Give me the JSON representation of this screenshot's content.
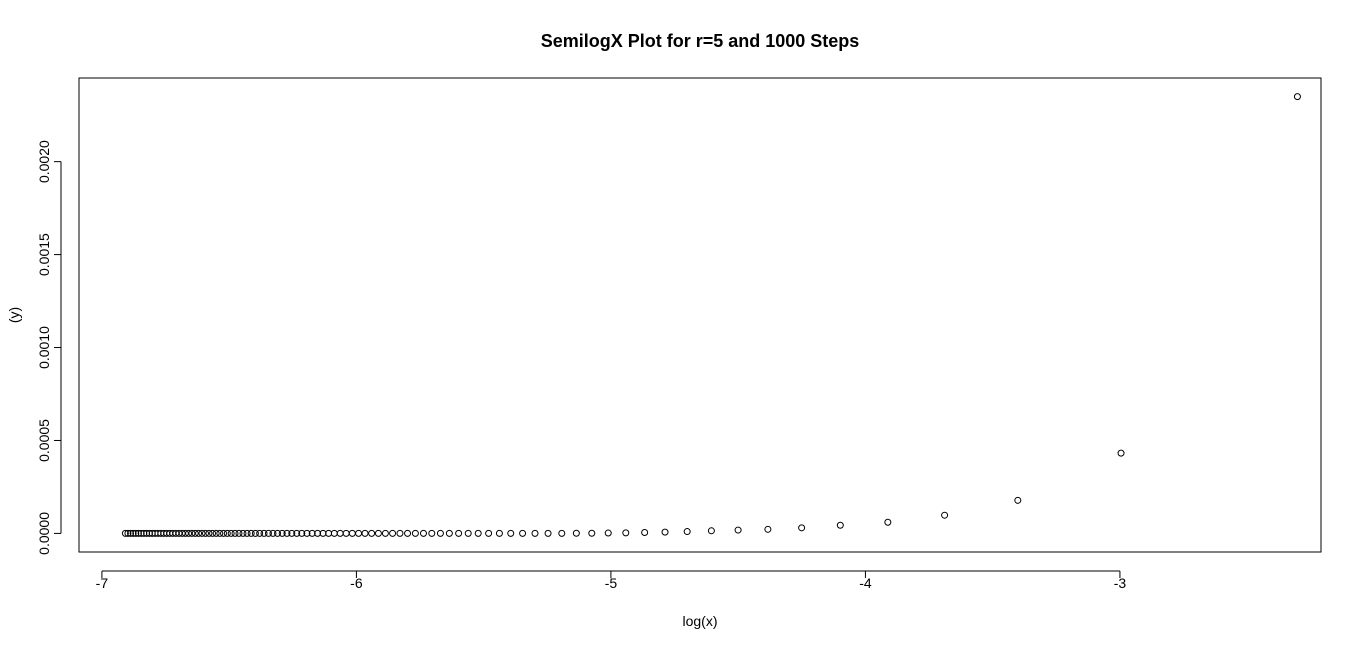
{
  "chart_data": {
    "type": "scatter",
    "title": "SemilogX Plot for r=5 and 1000 Steps",
    "xlabel": "log(x)",
    "ylabel": "(y)",
    "xlim": [
      -7.09,
      -2.21
    ],
    "ylim": [
      -0.0001,
      0.00245
    ],
    "x_ticks": [
      -7,
      -6,
      -5,
      -4,
      -3
    ],
    "x_tick_labels": [
      "-7",
      "-6",
      "-5",
      "-4",
      "-3"
    ],
    "y_ticks": [
      0,
      0.0005,
      0.001,
      0.0015,
      0.002
    ],
    "y_tick_labels": [
      "0.0000",
      "0.0005",
      "0.0010",
      "0.0015",
      "0.0020"
    ],
    "grid": false,
    "legend": "none",
    "marker": "open-circle",
    "point_color": "#000000",
    "x": [
      -6.9078,
      -6.8977,
      -6.8876,
      -6.8773,
      -6.8669,
      -6.8565,
      -6.8459,
      -6.8352,
      -6.8244,
      -6.8134,
      -6.8024,
      -6.7912,
      -6.7799,
      -6.7685,
      -6.7569,
      -6.7452,
      -6.7334,
      -6.7214,
      -6.7093,
      -6.697,
      -6.6846,
      -6.672,
      -6.6593,
      -6.6464,
      -6.6333,
      -6.6201,
      -6.6067,
      -6.593,
      -6.5793,
      -6.5653,
      -6.5511,
      -6.5367,
      -6.5221,
      -6.5073,
      -6.4922,
      -6.477,
      -6.4615,
      -6.4457,
      -6.4297,
      -6.4135,
      -6.3969,
      -6.3801,
      -6.363,
      -6.3456,
      -6.3279,
      -6.3099,
      -6.2916,
      -6.2729,
      -6.2538,
      -6.2344,
      -6.2146,
      -6.1944,
      -6.1738,
      -6.1527,
      -6.1312,
      -6.1092,
      -6.0868,
      -6.0638,
      -6.0403,
      -6.0162,
      -5.9915,
      -5.9662,
      -5.9402,
      -5.9135,
      -5.8861,
      -5.8579,
      -5.8289,
      -5.7991,
      -5.7683,
      -5.7365,
      -5.7038,
      -5.6699,
      -5.6348,
      -5.5984,
      -5.5607,
      -5.5215,
      -5.4806,
      -5.4381,
      -5.3936,
      -5.3471,
      -5.2983,
      -5.247,
      -5.193,
      -5.1358,
      -5.0752,
      -5.0106,
      -4.9416,
      -4.8675,
      -4.7874,
      -4.7004,
      -4.6052,
      -4.5003,
      -4.3833,
      -4.2507,
      -4.0987,
      -3.912,
      -3.6889,
      -3.4012,
      -2.9957,
      -2.3026
    ],
    "y": [
      0,
      0,
      0,
      0,
      0,
      0,
      0,
      0,
      0,
      0,
      0,
      0,
      0,
      0,
      0,
      0,
      0,
      0,
      0,
      0,
      0,
      0,
      0,
      0,
      0,
      0,
      0,
      0,
      0,
      0,
      0,
      0,
      0,
      0,
      0,
      0,
      0,
      0,
      0,
      0,
      0,
      0,
      0,
      0,
      0,
      0,
      0,
      0,
      0,
      0,
      0,
      0,
      0,
      0,
      0,
      0,
      0,
      0,
      0,
      0,
      0,
      0,
      0,
      0,
      0,
      0,
      0,
      0,
      0,
      0,
      0,
      0,
      0,
      0,
      0,
      0,
      0,
      0,
      0,
      0,
      0,
      0,
      0,
      1e-06,
      1e-06,
      2e-06,
      3e-06,
      5e-06,
      7e-06,
      1e-05,
      1.4e-05,
      1.8e-05,
      2.2e-05,
      3e-05,
      4.4e-05,
      6e-05,
      9.8e-05,
      0.000178,
      0.000432,
      0.00235
    ]
  }
}
